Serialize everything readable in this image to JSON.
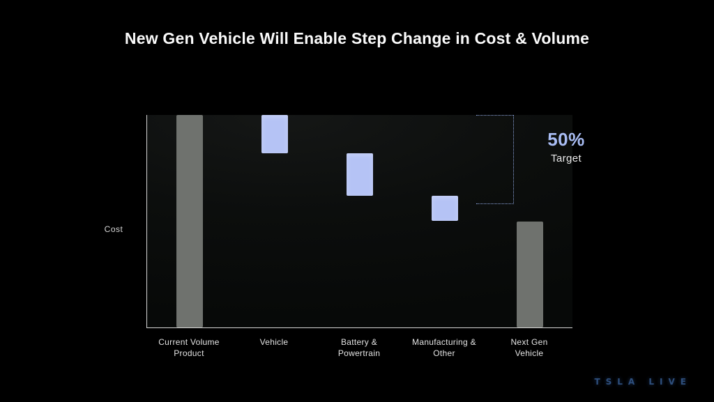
{
  "title": "New Gen Vehicle Will Enable Step Change in Cost & Volume",
  "watermark": "TSLA LIVE",
  "colors": {
    "background": "#000000",
    "bar_gray": "#6f726e",
    "bar_blue": "#b5c3f5",
    "bracket_dotted": "#8ea6e0",
    "annotation_blue": "#a9bdf4",
    "axis": "#d6d6d6",
    "text": "#fafafa"
  },
  "chart_data": {
    "type": "bar",
    "subtype": "waterfall",
    "title": "New Gen Vehicle Will Enable Step Change in Cost & Volume",
    "xlabel": "",
    "ylabel": "Cost",
    "ylim": [
      0,
      100
    ],
    "grid": false,
    "legend": false,
    "categories": [
      "Current Volume Product",
      "Vehicle",
      "Battery & Powertrain",
      "Manufacturing & Other",
      "Next Gen Vehicle"
    ],
    "bars": [
      {
        "label": "Current Volume Product",
        "label_lines": [
          "Current Volume",
          "Product"
        ],
        "role": "total",
        "from": 0,
        "to": 100,
        "delta": 100,
        "color": "#6f726e"
      },
      {
        "label": "Vehicle",
        "label_lines": [
          "Vehicle"
        ],
        "role": "decrease",
        "from": 82,
        "to": 100,
        "delta": -18,
        "color": "#b5c3f5"
      },
      {
        "label": "Battery & Powertrain",
        "label_lines": [
          "Battery &",
          "Powertrain"
        ],
        "role": "decrease",
        "from": 62,
        "to": 82,
        "delta": -20,
        "color": "#b5c3f5"
      },
      {
        "label": "Manufacturing & Other",
        "label_lines": [
          "Manufacturing &",
          "Other"
        ],
        "role": "decrease",
        "from": 50,
        "to": 62,
        "delta": -12,
        "color": "#b5c3f5"
      },
      {
        "label": "Next Gen Vehicle",
        "label_lines": [
          "Next Gen",
          "Vehicle"
        ],
        "role": "total",
        "from": 0,
        "to": 50,
        "delta": -50,
        "color": "#6f726e"
      }
    ],
    "annotation": {
      "value": "50%",
      "label": "Target",
      "bracket_to": 100,
      "bracket_from": 58
    }
  }
}
